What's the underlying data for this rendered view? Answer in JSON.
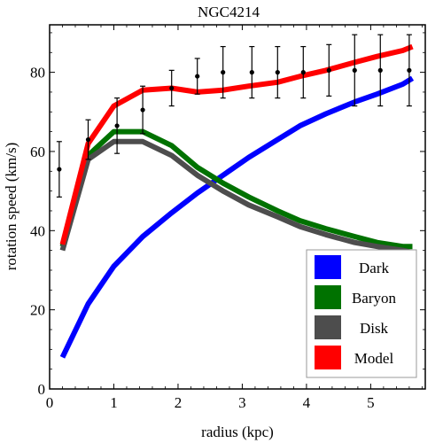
{
  "chart_data": {
    "type": "line",
    "title": "NGC4214",
    "xlabel": "radius (kpc)",
    "ylabel": "rotation speed (km/s)",
    "xlim": [
      0,
      5.85
    ],
    "ylim": [
      0,
      92
    ],
    "xticks": [
      0,
      1,
      2,
      3,
      4,
      5
    ],
    "yticks": [
      0,
      20,
      40,
      60,
      80
    ],
    "grid": false,
    "legend_position": "bottom-right",
    "series": [
      {
        "name": "Dark",
        "color": "#0000ff",
        "x": [
          0.2,
          0.6,
          1.0,
          1.45,
          1.9,
          2.3,
          2.7,
          3.1,
          3.55,
          3.9,
          4.3,
          4.75,
          5.1,
          5.5,
          5.65
        ],
        "y": [
          8,
          21.5,
          31,
          38.5,
          44.5,
          49.5,
          54,
          58.5,
          63,
          66.5,
          69.5,
          72.5,
          74.5,
          77,
          78.5
        ]
      },
      {
        "name": "Baryon",
        "color": "#007200",
        "x": [
          0.2,
          0.6,
          1.0,
          1.45,
          1.9,
          2.3,
          2.7,
          3.1,
          3.55,
          3.9,
          4.3,
          4.75,
          5.1,
          5.5,
          5.65
        ],
        "y": [
          36,
          59,
          65,
          65,
          61.5,
          56,
          52,
          48.5,
          45,
          42.5,
          40.5,
          38.5,
          37,
          36,
          36
        ]
      },
      {
        "name": "Disk",
        "color": "#4d4d4d",
        "x": [
          0.2,
          0.6,
          1.0,
          1.45,
          1.9,
          2.3,
          2.7,
          3.1,
          3.55,
          3.9,
          4.3,
          4.75,
          5.1,
          5.5,
          5.65
        ],
        "y": [
          35,
          58,
          62.5,
          62.5,
          59,
          54,
          50,
          46.5,
          43.5,
          41,
          39,
          37,
          36,
          35,
          34.5
        ]
      },
      {
        "name": "Model",
        "color": "#ff0000",
        "x": [
          0.2,
          0.6,
          1.0,
          1.45,
          1.9,
          2.3,
          2.7,
          3.1,
          3.55,
          3.9,
          4.3,
          4.75,
          5.1,
          5.5,
          5.65
        ],
        "y": [
          36.5,
          62,
          71.5,
          75.5,
          76,
          75,
          75.5,
          76.5,
          77.5,
          79,
          80.5,
          82.5,
          84,
          85.5,
          86.5
        ]
      }
    ],
    "observed": {
      "x": [
        0.15,
        0.6,
        1.05,
        1.45,
        1.9,
        2.3,
        2.7,
        3.15,
        3.55,
        3.95,
        4.35,
        4.75,
        5.15,
        5.6
      ],
      "y": [
        55.5,
        63,
        66.5,
        70.5,
        76,
        79,
        80,
        80,
        80,
        80,
        80.5,
        80.5,
        80.5,
        80.5
      ],
      "err": [
        7,
        5,
        7,
        6,
        4.5,
        4.5,
        6.5,
        6.5,
        6.5,
        6.5,
        6.5,
        9,
        9,
        9
      ]
    },
    "legend_entries": [
      "Dark",
      "Baryon",
      "Disk",
      "Model"
    ]
  }
}
